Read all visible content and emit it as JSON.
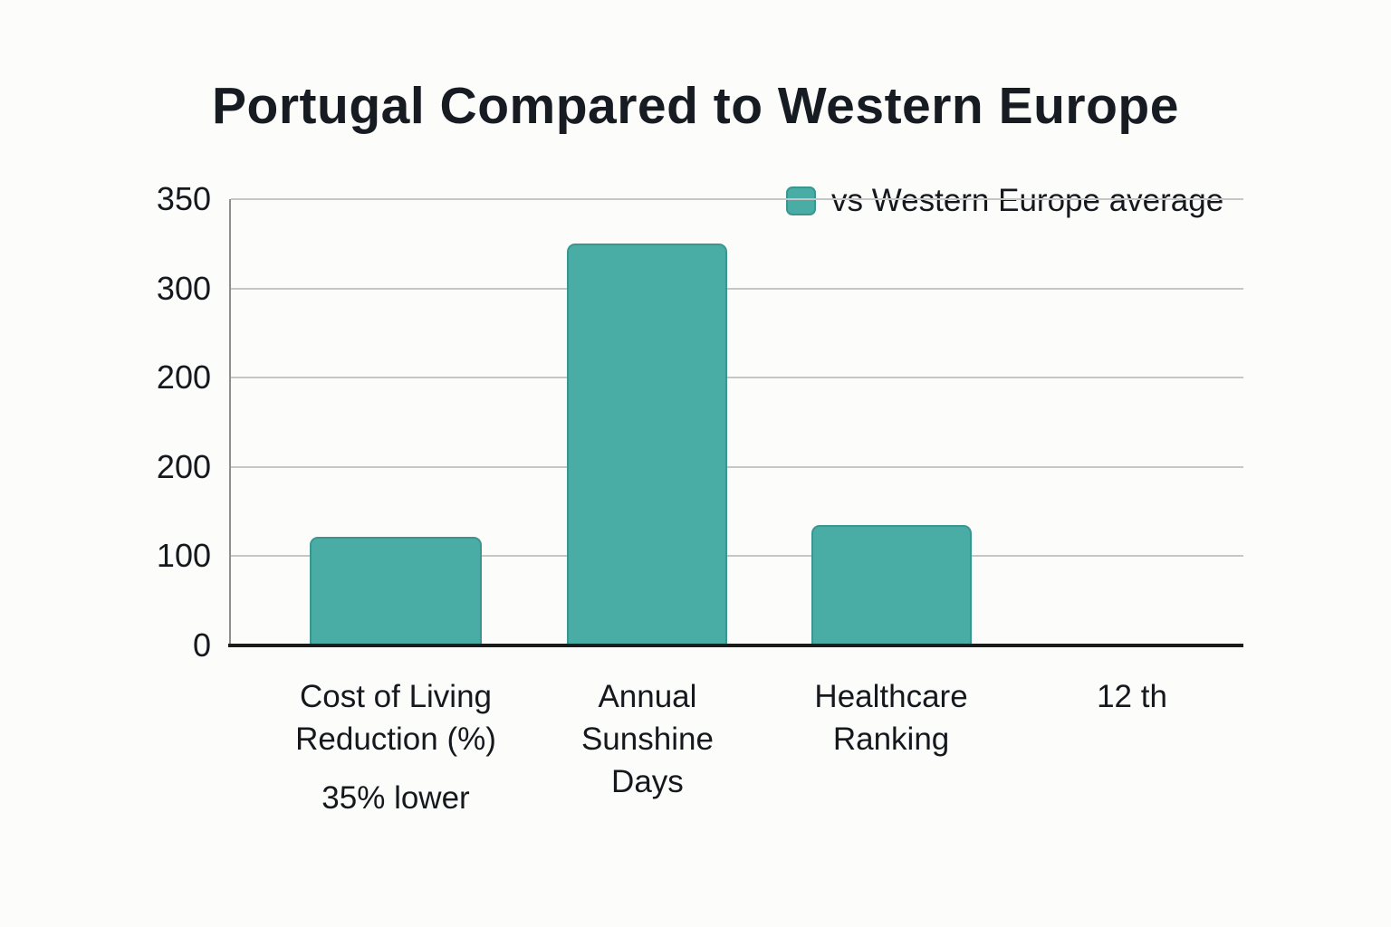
{
  "title": "Portugal Compared to Western Europe",
  "legend": {
    "label": "vs Western Europe average"
  },
  "colors": {
    "background": "#FCFCFB",
    "bar_fill": "#49ACA5",
    "bar_stroke": "#3A9691",
    "gridline": "#C6C6C6",
    "y_axis_line": "#8E8E8E",
    "x_axis_line": "#1B1B1B",
    "text": "#15191E"
  },
  "chart_data": {
    "type": "bar",
    "title": "Portugal Compared to Western Europe",
    "categories": [
      "Cost of Living Reduction (%)",
      "Annual Sunshine Days",
      "Healthcare Ranking",
      "12 th"
    ],
    "category_sublabels": [
      "35% lower",
      "",
      "",
      ""
    ],
    "series": [
      {
        "name": "vs Western Europe average",
        "values": [
          122,
          326,
          136,
          0
        ]
      }
    ],
    "ylim": [
      0,
      350
    ],
    "y_tick_labels_top_to_bottom": [
      "350",
      "300",
      "200",
      "200",
      "100",
      "0"
    ],
    "grid": "horizontal",
    "legend_position": "top-right",
    "x_labels_lines": [
      [
        "Cost of Living",
        "Reduction (%)"
      ],
      [
        "Annual",
        "Sunshine",
        "Days"
      ],
      [
        "Healthcare",
        "Ranking"
      ],
      [
        "12 th"
      ]
    ],
    "render_hints": {
      "bar_height_fractions": [
        0.2434,
        0.9006,
        0.2698,
        0
      ],
      "bar_center_fractions": [
        0.1628,
        0.4114,
        0.6521,
        0.89
      ],
      "bar_width_fractions": [
        0.17,
        0.1583,
        0.1583,
        0.1583
      ]
    }
  }
}
